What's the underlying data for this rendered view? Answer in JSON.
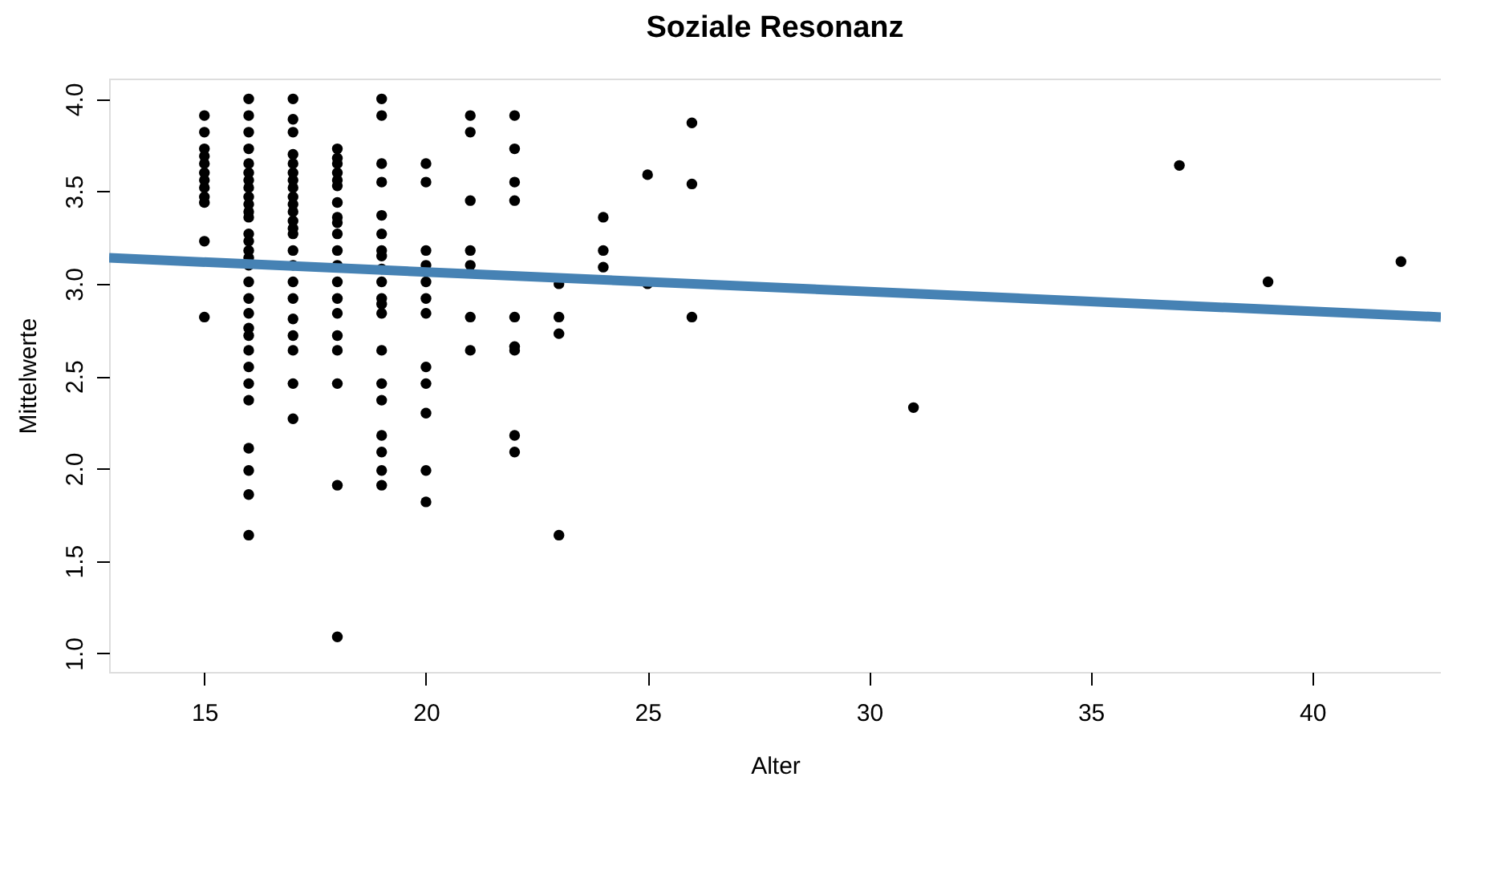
{
  "chart_data": {
    "type": "scatter",
    "title": "Soziale Resonanz",
    "xlabel": "Alter",
    "ylabel": "Mittelwerte",
    "xlim": [
      12.85,
      42.9
    ],
    "ylim": [
      0.9,
      4.11
    ],
    "xticks": [
      15,
      20,
      25,
      30,
      35,
      40
    ],
    "yticks": [
      {
        "value": 1,
        "label": "1.0"
      },
      1.5,
      {
        "value": 2,
        "label": "2.0"
      },
      2.5,
      {
        "value": 3,
        "label": "3.0"
      },
      3.5,
      {
        "value": 4,
        "label": "4.0"
      }
    ],
    "series": [
      {
        "marker": "circle",
        "color": "#000000",
        "x": [
          15,
          15,
          15,
          15,
          15,
          15,
          15,
          15,
          15,
          15,
          15,
          15,
          16,
          16,
          16,
          16,
          16,
          16,
          16,
          16,
          16,
          16,
          16,
          16,
          16,
          16,
          16,
          16,
          16,
          16,
          16,
          16,
          16,
          16,
          16,
          16,
          16,
          16,
          16,
          16,
          16,
          16,
          17,
          17,
          17,
          17,
          17,
          17,
          17,
          17,
          17,
          17,
          17,
          17,
          17,
          17,
          17,
          17,
          17,
          17,
          17,
          17,
          17,
          17,
          17,
          18,
          18,
          18,
          18,
          18,
          18,
          18,
          18,
          18,
          18,
          18,
          18,
          18,
          18,
          18,
          18,
          18,
          18,
          18,
          18,
          19,
          19,
          19,
          19,
          19,
          19,
          19,
          19,
          19,
          19,
          19,
          19,
          19,
          19,
          19,
          19,
          19,
          19,
          19,
          19,
          20,
          20,
          20,
          20,
          20,
          20,
          20,
          20,
          20,
          20,
          20,
          20,
          21,
          21,
          21,
          21,
          21,
          21,
          21,
          22,
          22,
          22,
          22,
          22,
          22,
          22,
          22,
          22,
          23,
          23,
          23,
          23,
          24,
          24,
          24,
          25,
          25,
          26,
          26,
          26,
          31,
          37,
          39,
          42
        ],
        "values": [
          3.91,
          3.82,
          3.73,
          3.69,
          3.65,
          3.6,
          3.56,
          3.52,
          3.47,
          3.44,
          3.23,
          2.82,
          4.0,
          3.91,
          3.82,
          3.73,
          3.65,
          3.6,
          3.56,
          3.52,
          3.47,
          3.43,
          3.39,
          3.36,
          3.27,
          3.23,
          3.18,
          3.14,
          3.1,
          3.01,
          2.92,
          2.84,
          2.76,
          2.72,
          2.64,
          2.55,
          2.46,
          2.37,
          2.11,
          1.99,
          1.86,
          1.64,
          4.0,
          3.89,
          3.82,
          3.7,
          3.65,
          3.6,
          3.56,
          3.52,
          3.47,
          3.43,
          3.39,
          3.34,
          3.3,
          3.27,
          3.18,
          3.1,
          3.01,
          2.92,
          2.81,
          2.72,
          2.64,
          2.46,
          2.27,
          3.73,
          3.68,
          3.65,
          3.6,
          3.56,
          3.53,
          3.44,
          3.36,
          3.33,
          3.27,
          3.18,
          3.1,
          3.01,
          2.92,
          2.84,
          2.72,
          2.64,
          2.46,
          1.91,
          1.09,
          4.0,
          3.91,
          3.65,
          3.55,
          3.37,
          3.27,
          3.18,
          3.15,
          3.08,
          3.01,
          2.92,
          2.89,
          2.84,
          2.64,
          2.46,
          2.37,
          2.18,
          2.09,
          1.99,
          1.91,
          3.65,
          3.55,
          3.18,
          3.1,
          3.01,
          2.92,
          2.84,
          2.55,
          2.46,
          2.3,
          1.99,
          1.82,
          3.91,
          3.82,
          3.45,
          3.18,
          3.1,
          2.82,
          2.64,
          3.91,
          3.73,
          3.55,
          3.45,
          2.82,
          2.66,
          2.64,
          2.18,
          2.09,
          3.0,
          2.82,
          2.73,
          1.64,
          3.36,
          3.18,
          3.09,
          3.59,
          3.0,
          3.87,
          3.54,
          2.82,
          2.33,
          3.64,
          3.01,
          3.12
        ]
      },
      {
        "type": "line",
        "marker": "none",
        "line_style": "solid",
        "color": "#4682b4",
        "x": [
          12.85,
          42.9
        ],
        "values": [
          3.14,
          2.82
        ]
      }
    ]
  }
}
